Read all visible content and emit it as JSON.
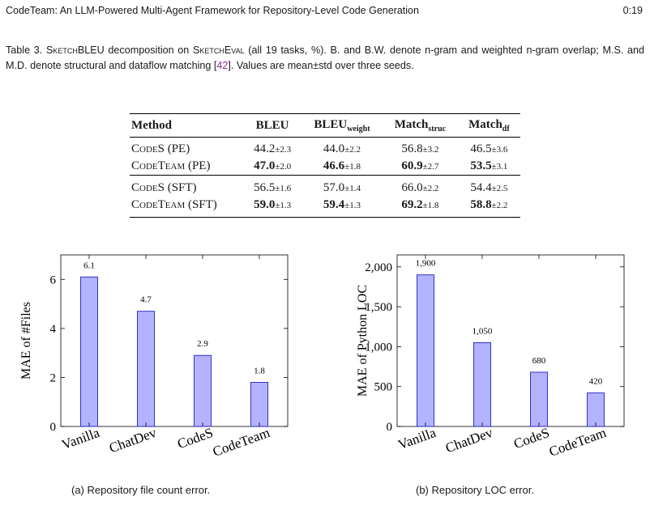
{
  "header": {
    "running_title": "CodeTeam: An LLM-Powered Multi-Agent Framework for Repository-Level Code Generation",
    "page_number": "0:19"
  },
  "caption": {
    "label": "Table 3.",
    "sc1": "SketchBLEU",
    "t1": " decomposition on ",
    "sc2": "SketchEval",
    "t2": " (all 19 tasks, %). B. and B.W. denote n-gram and weighted n-gram overlap; M.S. and M.D. denote structural and dataflow matching [",
    "cite": "42",
    "t3": "]. Values are mean±std over three seeds."
  },
  "table": {
    "headers": {
      "method": "Method",
      "bleu": "BLEU",
      "bleu_w": "BLEU",
      "bleu_w_sub": "weight",
      "match_s": "Match",
      "match_s_sub": "struc",
      "match_d": "Match",
      "match_d_sub": "df"
    },
    "rows": [
      {
        "method": "CodeS (PE)",
        "cells": [
          {
            "v": "44.2",
            "s": "±2.3",
            "b": false
          },
          {
            "v": "44.0",
            "s": "±2.2",
            "b": false
          },
          {
            "v": "56.8",
            "s": "±3.2",
            "b": false
          },
          {
            "v": "46.5",
            "s": "±3.6",
            "b": false
          }
        ]
      },
      {
        "method": "CodeTeam (PE)",
        "cells": [
          {
            "v": "47.0",
            "s": "±2.0",
            "b": true
          },
          {
            "v": "46.6",
            "s": "±1.8",
            "b": true
          },
          {
            "v": "60.9",
            "s": "±2.7",
            "b": true
          },
          {
            "v": "53.5",
            "s": "±3.1",
            "b": true
          }
        ]
      },
      {
        "method": "CodeS (SFT)",
        "cells": [
          {
            "v": "56.5",
            "s": "±1.6",
            "b": false
          },
          {
            "v": "57.0",
            "s": "±1.4",
            "b": false
          },
          {
            "v": "66.0",
            "s": "±2.2",
            "b": false
          },
          {
            "v": "54.4",
            "s": "±2.5",
            "b": false
          }
        ]
      },
      {
        "method": "CodeTeam (SFT)",
        "cells": [
          {
            "v": "59.0",
            "s": "±1.3",
            "b": true
          },
          {
            "v": "59.4",
            "s": "±1.3",
            "b": true
          },
          {
            "v": "69.2",
            "s": "±1.8",
            "b": true
          },
          {
            "v": "58.8",
            "s": "±2.2",
            "b": true
          }
        ]
      }
    ]
  },
  "chart_data": [
    {
      "type": "bar",
      "categories": [
        "Vanilla",
        "ChatDev",
        "CodeS",
        "CodeTeam"
      ],
      "values": [
        6.1,
        4.7,
        2.9,
        1.8
      ],
      "data_labels": [
        "6.1",
        "4.7",
        "2.9",
        "1.8"
      ],
      "yticks": [
        0,
        2,
        4,
        6
      ],
      "ytick_labels": [
        "0",
        "2",
        "4",
        "6"
      ],
      "ylim": [
        0,
        7.0
      ],
      "ylabel": "MAE of #Files",
      "xlabel": "",
      "caption": "(a) Repository file count error.",
      "bar_fill": "#b3b3ff",
      "bar_stroke": "#2020c8",
      "grid": false
    },
    {
      "type": "bar",
      "categories": [
        "Vanilla",
        "ChatDev",
        "CodeS",
        "CodeTeam"
      ],
      "values": [
        1900,
        1050,
        680,
        420
      ],
      "data_labels": [
        "1,900",
        "1,050",
        "680",
        "420"
      ],
      "yticks": [
        0,
        500,
        1000,
        1500,
        2000
      ],
      "ytick_labels": [
        "0",
        "500",
        "1,000",
        "1,500",
        "2,000"
      ],
      "ylim": [
        0,
        2150
      ],
      "ylabel": "MAE of Python LOC",
      "xlabel": "",
      "caption": "(b) Repository LOC error.",
      "bar_fill": "#b3b3ff",
      "bar_stroke": "#2020c8",
      "grid": false
    }
  ]
}
